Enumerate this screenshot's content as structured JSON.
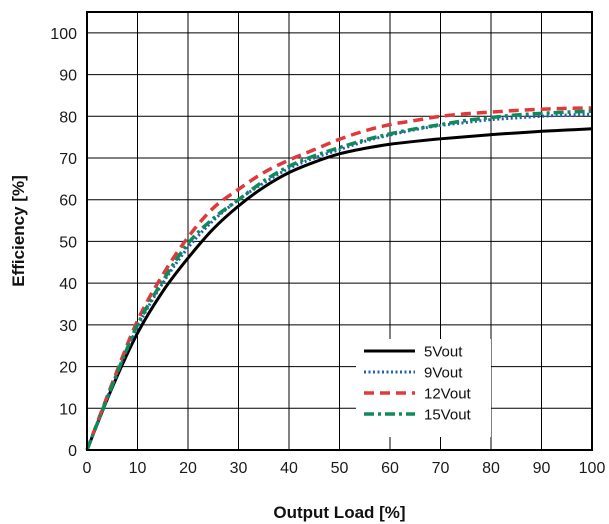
{
  "chart_data": {
    "type": "line",
    "title": "",
    "xlabel": "Output Load [%]",
    "ylabel": "Efficiency [%]",
    "xlim": [
      0,
      100
    ],
    "ylim": [
      0,
      105
    ],
    "xticks": [
      "0",
      "10",
      "20",
      "30",
      "40",
      "50",
      "60",
      "70",
      "80",
      "90",
      "100"
    ],
    "yticks": [
      "0",
      "10",
      "20",
      "30",
      "40",
      "50",
      "60",
      "70",
      "80",
      "90",
      "100"
    ],
    "grid": true,
    "legend_position": "bottom-right",
    "x": [
      0,
      5,
      10,
      15,
      20,
      25,
      30,
      35,
      40,
      45,
      50,
      55,
      60,
      65,
      70,
      75,
      80,
      85,
      90,
      95,
      100
    ],
    "series": [
      {
        "name": "5Vout",
        "color": "#000000",
        "style": "solid",
        "values": [
          0,
          15,
          28,
          38,
          46,
          53,
          58.5,
          63,
          66.5,
          69,
          71,
          72.3,
          73.3,
          74,
          74.6,
          75.1,
          75.6,
          76,
          76.4,
          76.7,
          77
        ]
      },
      {
        "name": "9Vout",
        "color": "#1f5fb5",
        "style": "dotted",
        "values": [
          0,
          15.5,
          29.5,
          40,
          48.5,
          55,
          60,
          64,
          67.5,
          70,
          72,
          74,
          75.5,
          76.8,
          77.8,
          78.5,
          79.2,
          79.6,
          80,
          80.3,
          80.5
        ]
      },
      {
        "name": "12Vout",
        "color": "#e0393b",
        "style": "dashed",
        "values": [
          0,
          16,
          31,
          42,
          51,
          58,
          62.5,
          66.5,
          69.5,
          72,
          74.5,
          76.5,
          78,
          79,
          80,
          80.6,
          81,
          81.4,
          81.7,
          81.9,
          82
        ]
      },
      {
        "name": "15Vout",
        "color": "#0f8a5a",
        "style": "dashdot",
        "values": [
          0,
          15.5,
          30,
          40.5,
          49.5,
          55.5,
          60,
          64.5,
          68,
          70.5,
          72.5,
          74.3,
          75.8,
          77,
          78,
          79,
          79.7,
          80.3,
          80.7,
          81,
          81.2
        ]
      }
    ]
  }
}
